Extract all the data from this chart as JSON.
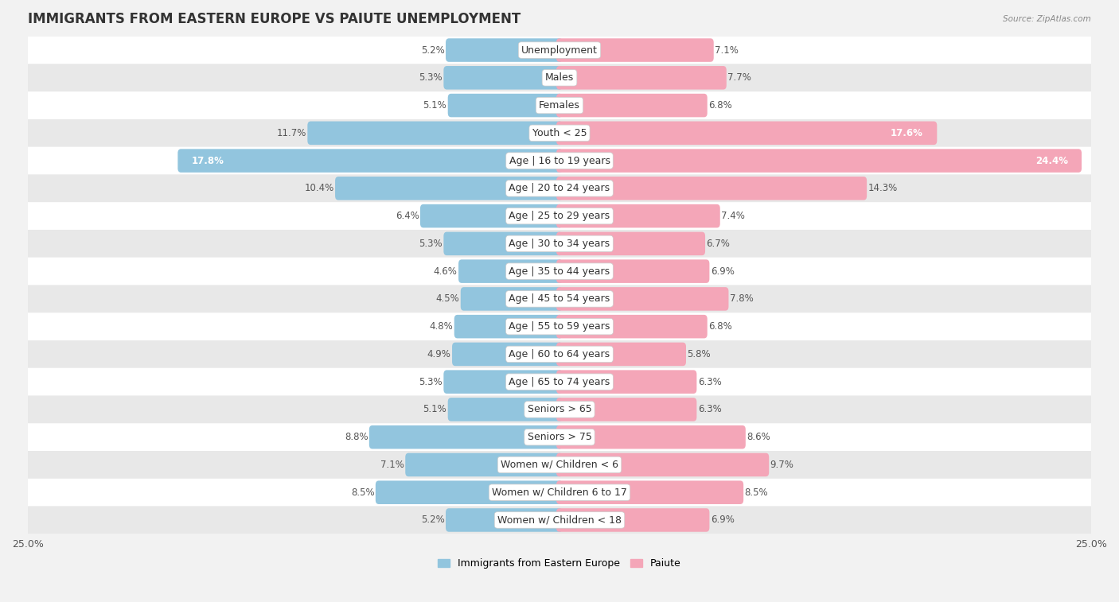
{
  "title": "IMMIGRANTS FROM EASTERN EUROPE VS PAIUTE UNEMPLOYMENT",
  "source": "Source: ZipAtlas.com",
  "categories": [
    "Unemployment",
    "Males",
    "Females",
    "Youth < 25",
    "Age | 16 to 19 years",
    "Age | 20 to 24 years",
    "Age | 25 to 29 years",
    "Age | 30 to 34 years",
    "Age | 35 to 44 years",
    "Age | 45 to 54 years",
    "Age | 55 to 59 years",
    "Age | 60 to 64 years",
    "Age | 65 to 74 years",
    "Seniors > 65",
    "Seniors > 75",
    "Women w/ Children < 6",
    "Women w/ Children 6 to 17",
    "Women w/ Children < 18"
  ],
  "left_values": [
    5.2,
    5.3,
    5.1,
    11.7,
    17.8,
    10.4,
    6.4,
    5.3,
    4.6,
    4.5,
    4.8,
    4.9,
    5.3,
    5.1,
    8.8,
    7.1,
    8.5,
    5.2
  ],
  "right_values": [
    7.1,
    7.7,
    6.8,
    17.6,
    24.4,
    14.3,
    7.4,
    6.7,
    6.9,
    7.8,
    6.8,
    5.8,
    6.3,
    6.3,
    8.6,
    9.7,
    8.5,
    6.9
  ],
  "left_color": "#92c5de",
  "right_color": "#f4a6b8",
  "left_label": "Immigrants from Eastern Europe",
  "right_label": "Paiute",
  "xlim": 25.0,
  "bg_color": "#f2f2f2",
  "row_color_light": "#ffffff",
  "row_color_dark": "#e8e8e8",
  "title_fontsize": 12,
  "label_fontsize": 9,
  "value_fontsize": 8.5,
  "bar_height": 0.55
}
